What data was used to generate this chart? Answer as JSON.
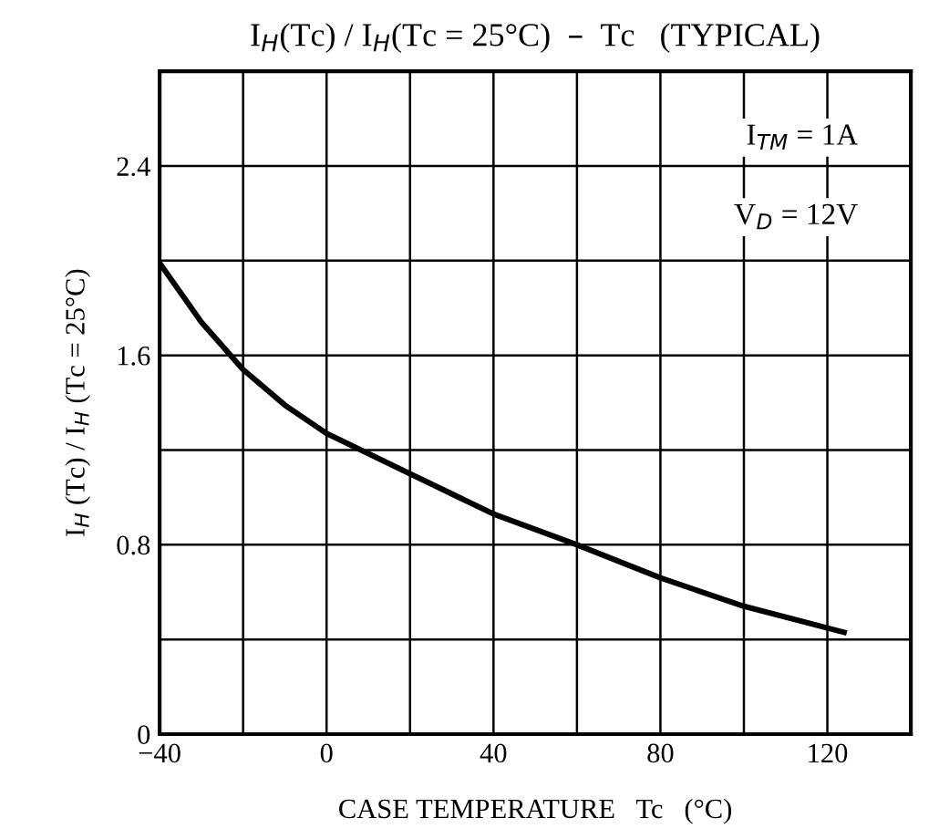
{
  "chart_data": {
    "type": "line",
    "title": "I$_{H}$(Tc) / I$_{H}$(Tc = 25°C)  –  Tc   (TYPICAL)",
    "xlabel": "CASE TEMPERATURE   Tc   (°C)",
    "ylabel": "I$_{H}$ (Tc) / I$_{H}$ (Tc = 25°C)",
    "x": [
      -40,
      -30,
      -20,
      -10,
      0,
      20,
      40,
      60,
      80,
      100,
      124
    ],
    "series": [
      {
        "color": "#000000",
        "values": [
          1.99,
          1.74,
          1.54,
          1.39,
          1.27,
          1.1,
          0.93,
          0.8,
          0.66,
          0.54,
          0.43
        ]
      }
    ],
    "xlim": [
      -40,
      140
    ],
    "ylim": [
      0,
      2.8
    ],
    "xticks": [
      {
        "value": -40,
        "label": "−40"
      },
      {
        "value": -20,
        "label": null
      },
      0,
      {
        "value": 20,
        "label": null
      },
      40,
      {
        "value": 60,
        "label": null
      },
      80,
      {
        "value": 100,
        "label": null
      },
      120,
      {
        "value": 140,
        "label": null
      }
    ],
    "yticks": [
      0,
      {
        "value": 0.4,
        "label": null
      },
      0.8,
      {
        "value": 1.2,
        "label": null
      },
      1.6,
      {
        "value": 2.0,
        "label": null
      },
      2.4,
      {
        "value": 2.8,
        "label": null
      }
    ],
    "grid": true,
    "marker": "none",
    "line_style": "solid",
    "annotations": [
      "I$_{TM}$ = 1A",
      "V$_{D}$ = 12V"
    ]
  }
}
